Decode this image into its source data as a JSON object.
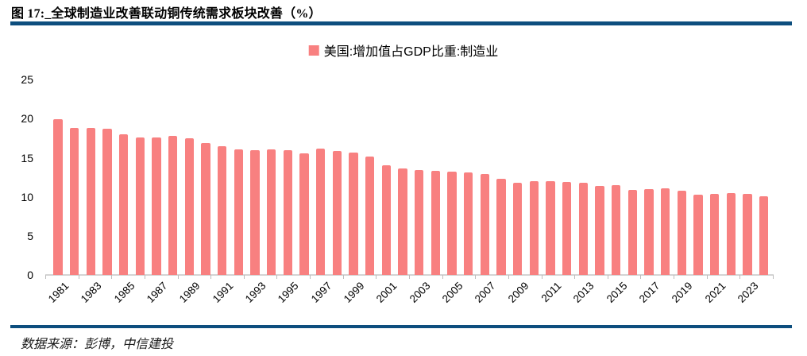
{
  "header": {
    "title": "图 17:_全球制造业改善联动铜传统需求板块改善（%）"
  },
  "legend": {
    "label": "美国:增加值占GDP比重:制造业"
  },
  "footer": {
    "source": "数据来源：彭博，中信建投"
  },
  "colors": {
    "bar": "#F88080",
    "rule": "#0D4E7E",
    "axis_line": "#D4D4D4",
    "tick": "#BDBDBD",
    "text": "#000000"
  },
  "chart_data": {
    "type": "bar",
    "title": "美国:增加值占GDP比重:制造业",
    "xlabel": "",
    "ylabel": "",
    "ylim": [
      0,
      25
    ],
    "yticks": [
      0,
      5,
      10,
      15,
      20,
      25
    ],
    "grid": false,
    "legend_position": "top-center",
    "x": [
      1981,
      1982,
      1983,
      1984,
      1985,
      1986,
      1987,
      1988,
      1989,
      1990,
      1991,
      1992,
      1993,
      1994,
      1995,
      1996,
      1997,
      1998,
      1999,
      2000,
      2001,
      2002,
      2003,
      2004,
      2005,
      2006,
      2007,
      2008,
      2009,
      2010,
      2011,
      2012,
      2013,
      2014,
      2015,
      2016,
      2017,
      2018,
      2019,
      2020,
      2021,
      2022,
      2023,
      2024
    ],
    "values": [
      19.9,
      18.8,
      18.8,
      18.7,
      18.0,
      17.6,
      17.6,
      17.8,
      17.5,
      16.9,
      16.5,
      16.1,
      16.0,
      16.1,
      16.0,
      15.6,
      16.2,
      15.9,
      15.7,
      15.2,
      14.0,
      13.6,
      13.4,
      13.3,
      13.2,
      13.1,
      12.9,
      12.3,
      11.8,
      12.0,
      12.0,
      11.9,
      11.8,
      11.4,
      11.5,
      10.9,
      11.0,
      11.1,
      10.8,
      10.3,
      10.4,
      10.5,
      10.4,
      10.1
    ],
    "xtick_labels": [
      "1981",
      "1983",
      "1985",
      "1987",
      "1989",
      "1991",
      "1993",
      "1995",
      "1997",
      "1999",
      "2001",
      "2003",
      "2005",
      "2007",
      "2009",
      "2011",
      "2013",
      "2015",
      "2017",
      "2019",
      "2021",
      "2023"
    ]
  }
}
